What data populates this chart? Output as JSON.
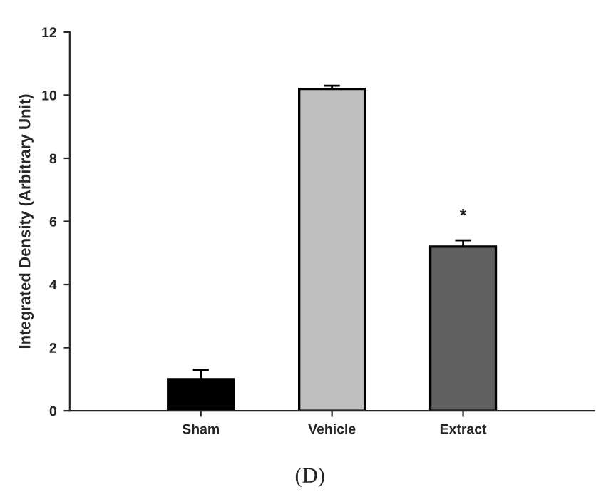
{
  "chart_data": {
    "type": "bar",
    "ylabel": "Integrated Density (Arbitrary Unit)",
    "categories": [
      "Sham",
      "Vehicle",
      "Extract"
    ],
    "values": [
      1.0,
      10.2,
      5.2
    ],
    "errors": [
      0.3,
      0.1,
      0.2
    ],
    "colors": [
      "#000000",
      "#c0c0c0",
      "#606060"
    ],
    "ylim": [
      0,
      12
    ],
    "yticks": [
      0,
      2,
      4,
      6,
      8,
      10,
      12
    ],
    "grid": false,
    "annotations": [
      "*",
      "(D)"
    ]
  }
}
